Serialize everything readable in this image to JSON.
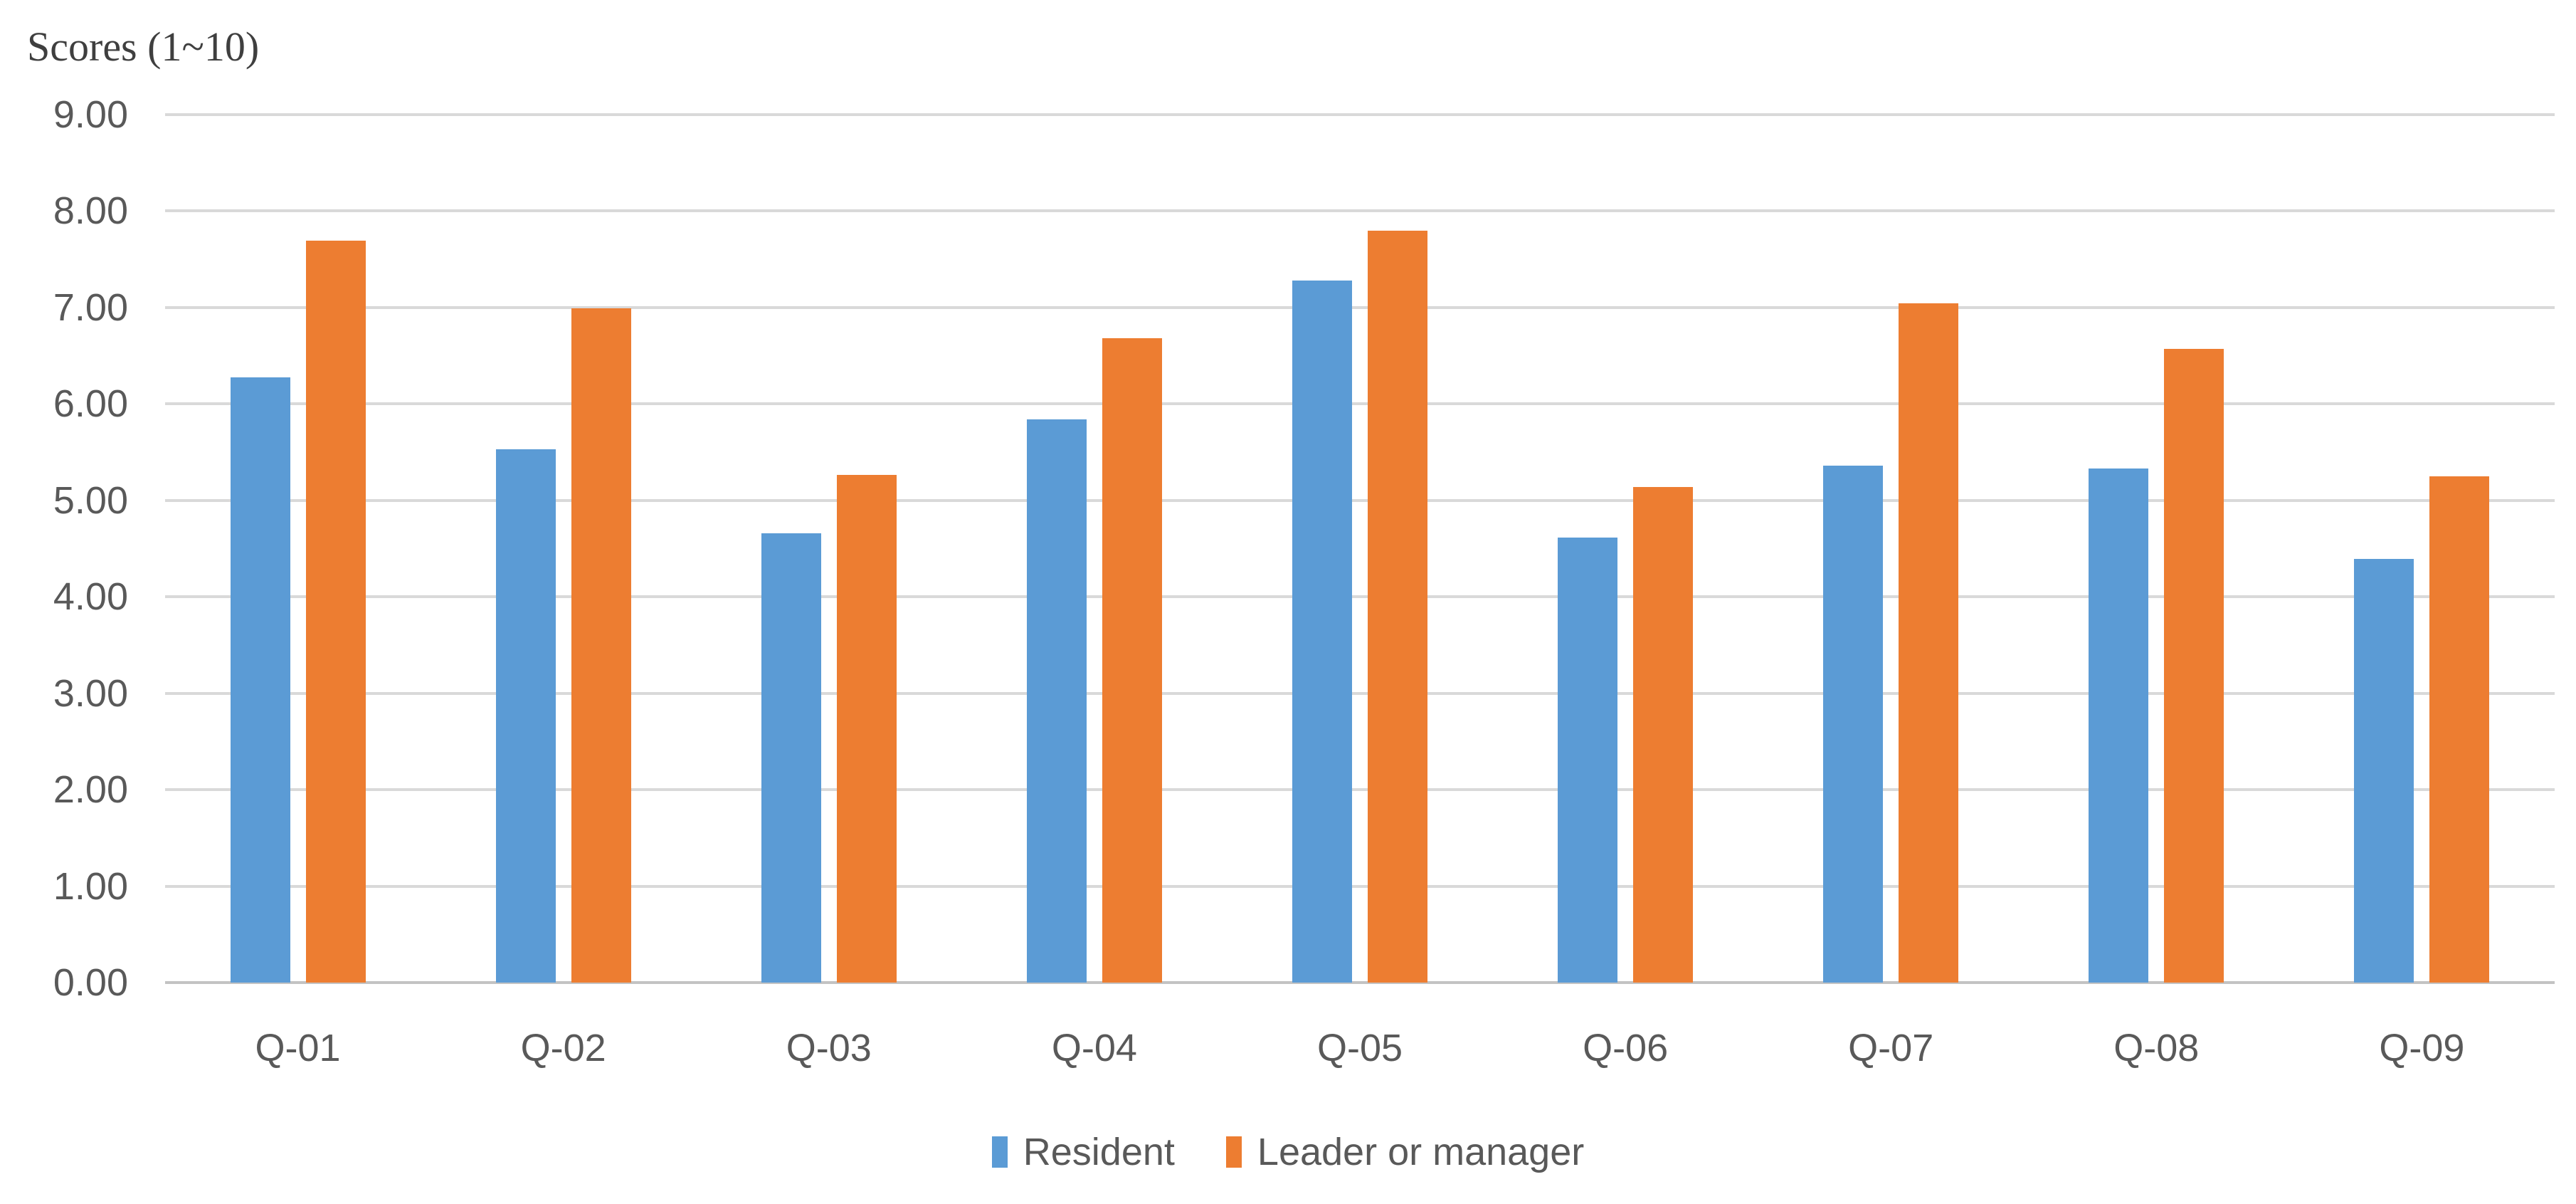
{
  "chart_data": {
    "type": "bar",
    "title": "Scores (1~10)",
    "categories": [
      "Q-01",
      "Q-02",
      "Q-03",
      "Q-04",
      "Q-05",
      "Q-06",
      "Q-07",
      "Q-08",
      "Q-09"
    ],
    "series": [
      {
        "name": "Resident",
        "color": "#5B9BD5",
        "values": [
          6.27,
          5.53,
          4.66,
          5.84,
          7.28,
          4.61,
          5.36,
          5.33,
          4.39
        ]
      },
      {
        "name": "Leader or manager",
        "color": "#ED7D31",
        "values": [
          7.69,
          6.99,
          5.26,
          6.68,
          7.79,
          5.14,
          7.04,
          6.57,
          5.25
        ]
      }
    ],
    "ylabel": "Scores (1~10)",
    "ylim": [
      0,
      9
    ],
    "y_tick_step": 1,
    "y_tick_labels": [
      "0.00",
      "1.00",
      "2.00",
      "3.00",
      "4.00",
      "5.00",
      "6.00",
      "7.00",
      "8.00",
      "9.00"
    ],
    "grid": true,
    "legend_position": "bottom-center",
    "colors": {
      "gridline": "#d9d9d9",
      "axis_line": "#c3c3c3",
      "tick_text": "#595959",
      "title_text": "#3f3f3f",
      "background": "#ffffff"
    }
  }
}
